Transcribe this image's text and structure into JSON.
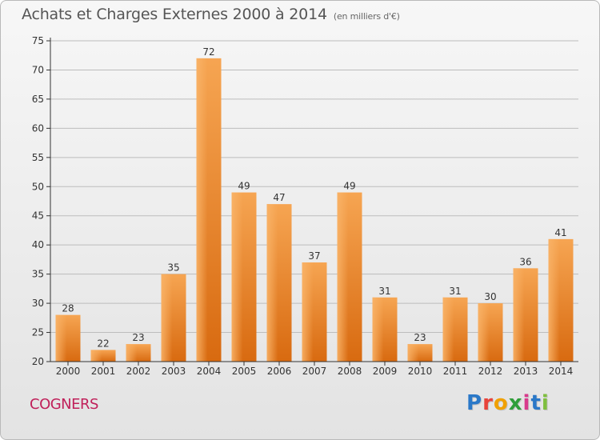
{
  "header": {
    "title": "Achats et Charges Externes 2000 à 2014",
    "unit": "(en milliers d'€)"
  },
  "footer": {
    "commune": "COGNERS",
    "brand": "Proxiti",
    "brand_colors": [
      "#2a78c8",
      "#e8433a",
      "#f0a000",
      "#2f9e3a",
      "#d83a8c",
      "#2a78c8",
      "#7fbf3f"
    ]
  },
  "colors": {
    "bar": "#f07d1a",
    "axis": "#333333",
    "grid": "#bdbdbd"
  },
  "chart_data": {
    "type": "bar",
    "title": "Achats et Charges Externes 2000 à 2014",
    "subtitle": "(en milliers d'€)",
    "categories": [
      "2000",
      "2001",
      "2002",
      "2003",
      "2004",
      "2005",
      "2006",
      "2007",
      "2008",
      "2009",
      "2010",
      "2011",
      "2012",
      "2013",
      "2014"
    ],
    "values": [
      28,
      22,
      23,
      35,
      72,
      49,
      47,
      37,
      49,
      31,
      23,
      31,
      30,
      36,
      41
    ],
    "ylim": [
      20,
      75
    ],
    "yticks": [
      20,
      25,
      30,
      35,
      40,
      45,
      50,
      55,
      60,
      65,
      70,
      75
    ],
    "grid": true,
    "data_labels": true
  }
}
